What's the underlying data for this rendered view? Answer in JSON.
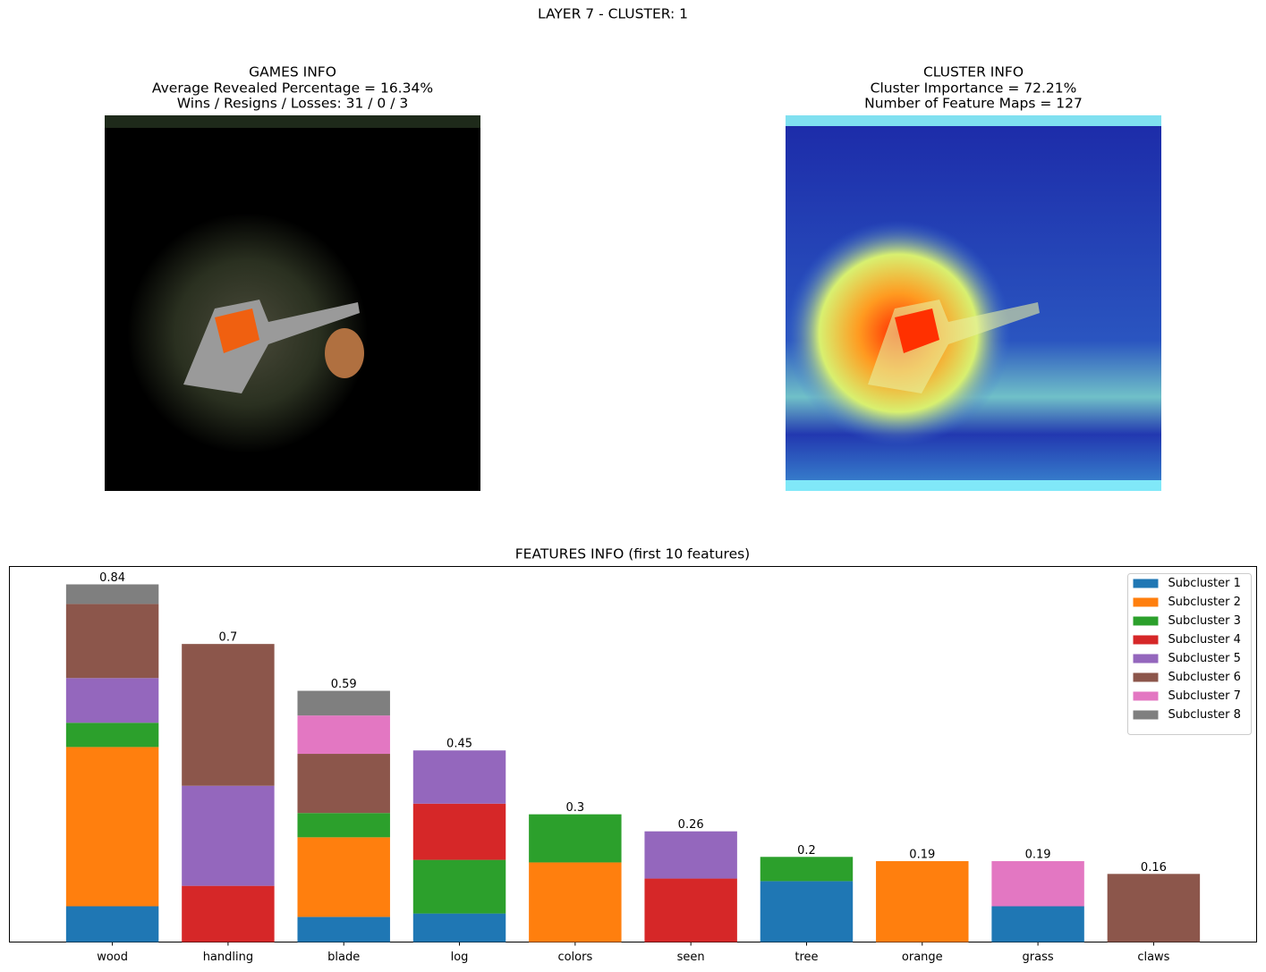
{
  "title": "LAYER 7 - CLUSTER: 1",
  "panels": [
    {
      "lines": [
        "GAMES INFO",
        "Average Revealed Percentage = 16.34%",
        "Wins / Resigns / Losses: 31 / 0 / 3"
      ]
    },
    {
      "lines": [
        "CLUSTER INFO",
        "Cluster Importance = 72.21%",
        "Number of Feature Maps = 127"
      ]
    }
  ],
  "chart_data": {
    "type": "stacked_bar",
    "title": "FEATURES INFO (first 10 features)",
    "categories": [
      "wood",
      "handling",
      "blade",
      "log",
      "colors",
      "seen",
      "tree",
      "orange",
      "grass",
      "claws"
    ],
    "ylim": [
      0,
      0.882
    ],
    "legend": "upper right",
    "totals": [
      0.84,
      0.7,
      0.59,
      0.45,
      0.3,
      0.26,
      0.2,
      0.19,
      0.19,
      0.16
    ],
    "series": [
      {
        "name": "Subcluster 1",
        "color": "#1f77b4",
        "values": [
          0.084,
          0,
          0.059,
          0.067,
          0,
          0,
          0.143,
          0,
          0.084,
          0
        ]
      },
      {
        "name": "Subcluster 2",
        "color": "#ff7f0e",
        "values": [
          0.374,
          0,
          0.187,
          0,
          0.187,
          0,
          0,
          0.19,
          0,
          0
        ]
      },
      {
        "name": "Subcluster 3",
        "color": "#2ca02c",
        "values": [
          0.057,
          0,
          0.057,
          0.126,
          0.113,
          0,
          0.057,
          0,
          0,
          0
        ]
      },
      {
        "name": "Subcluster 4",
        "color": "#d62728",
        "values": [
          0,
          0.132,
          0,
          0.132,
          0,
          0.149,
          0,
          0,
          0,
          0
        ]
      },
      {
        "name": "Subcluster 5",
        "color": "#9467bd",
        "values": [
          0.105,
          0.235,
          0,
          0.125,
          0,
          0.111,
          0,
          0,
          0,
          0
        ]
      },
      {
        "name": "Subcluster 6",
        "color": "#8c564b",
        "values": [
          0.174,
          0.333,
          0.139,
          0,
          0,
          0,
          0,
          0,
          0,
          0.16
        ]
      },
      {
        "name": "Subcluster 7",
        "color": "#e377c2",
        "values": [
          0,
          0,
          0.09,
          0,
          0,
          0,
          0,
          0,
          0.106,
          0
        ]
      },
      {
        "name": "Subcluster 8",
        "color": "#7f7f7f",
        "values": [
          0.046,
          0,
          0.058,
          0,
          0,
          0,
          0,
          0,
          0,
          0
        ]
      }
    ]
  }
}
